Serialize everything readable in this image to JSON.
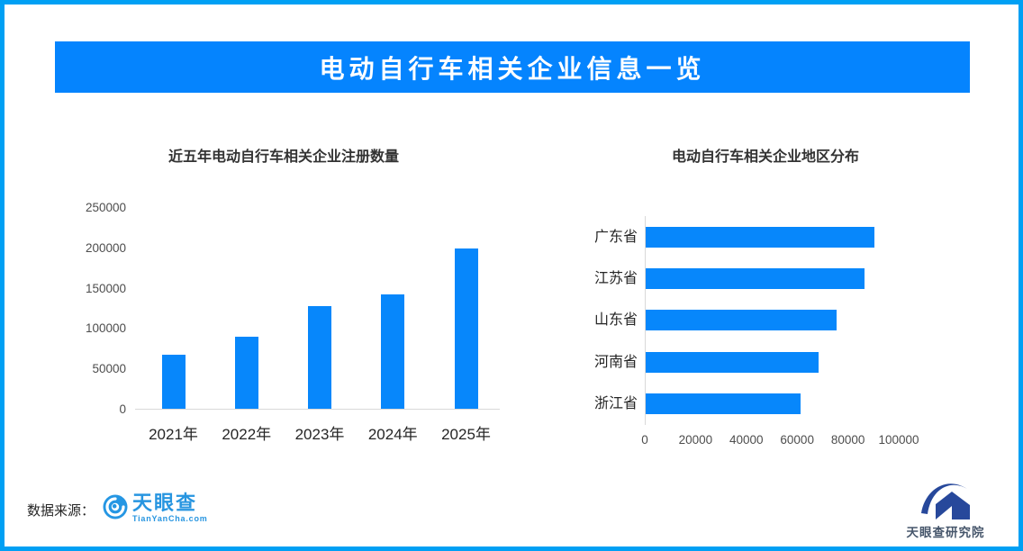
{
  "page": {
    "banner_title": "电动自行车相关企业信息一览",
    "colors": {
      "border": "#00a0f4",
      "banner": "#0584fe",
      "bar": "#0787fb",
      "axis_line": "#d9d9d9"
    }
  },
  "chart_data": [
    {
      "type": "bar",
      "orientation": "vertical",
      "title": "近五年电动自行车相关企业注册数量",
      "categories": [
        "2021年",
        "2022年",
        "2023年",
        "2024年",
        "2025年"
      ],
      "values": [
        68000,
        90000,
        128000,
        143000,
        200000
      ],
      "xlabel": "",
      "ylabel": "",
      "ylim": [
        0,
        250000
      ],
      "yticks": [
        0,
        50000,
        100000,
        150000,
        200000,
        250000
      ],
      "grid": false,
      "legend": false,
      "bar_color": "#0787fb"
    },
    {
      "type": "bar",
      "orientation": "horizontal",
      "title": "电动自行车相关企业地区分布",
      "categories": [
        "广东省",
        "江苏省",
        "山东省",
        "河南省",
        "浙江省"
      ],
      "values": [
        90000,
        86000,
        75000,
        68000,
        61000
      ],
      "xlabel": "",
      "ylabel": "",
      "xlim": [
        0,
        100000
      ],
      "xticks": [
        0,
        20000,
        40000,
        60000,
        80000,
        100000
      ],
      "grid": false,
      "legend": false,
      "bar_color": "#0787fb"
    }
  ],
  "footer": {
    "source_label": "数据来源：",
    "tianyancha_logo": {
      "name": "天眼查",
      "domain": "TianYanCha.com"
    },
    "research_logo": {
      "name": "天眼查研究院"
    }
  }
}
